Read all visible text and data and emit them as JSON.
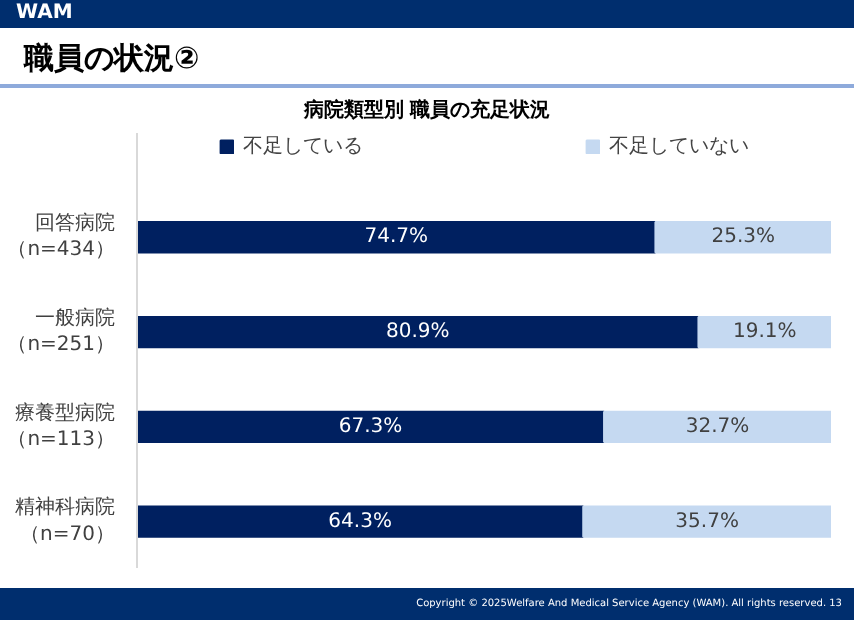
{
  "chart_data": {
    "type": "bar",
    "orientation": "horizontal",
    "stacked": true,
    "title": "職員の状況②",
    "subtitle": "病院類型別 職員の充足状況",
    "categories": [
      "回答病院（n=434）",
      "一般病院（n=251）",
      "療養型病院（n=113）",
      "精神科病院（n=70）"
    ],
    "series": [
      {
        "name": "不足している",
        "color": "#002060",
        "values": [
          74.7,
          80.9,
          67.3,
          64.3
        ],
        "value_labels": [
          "74.7%",
          "80.9%",
          "67.3%",
          "64.3%"
        ]
      },
      {
        "name": "不足していない",
        "color": "#c5d9f1",
        "values": [
          25.3,
          19.1,
          32.7,
          35.7
        ],
        "value_labels": [
          "25.3%",
          "19.1%",
          "32.7%",
          "35.7%"
        ]
      }
    ],
    "legend": "top",
    "grid": false,
    "tick_labels": "y",
    "annotations": [
      "WAM",
      "Copyright © 2025Welfare And Medical Service Agency (WAM). All rights reserved.",
      "13"
    ]
  }
}
